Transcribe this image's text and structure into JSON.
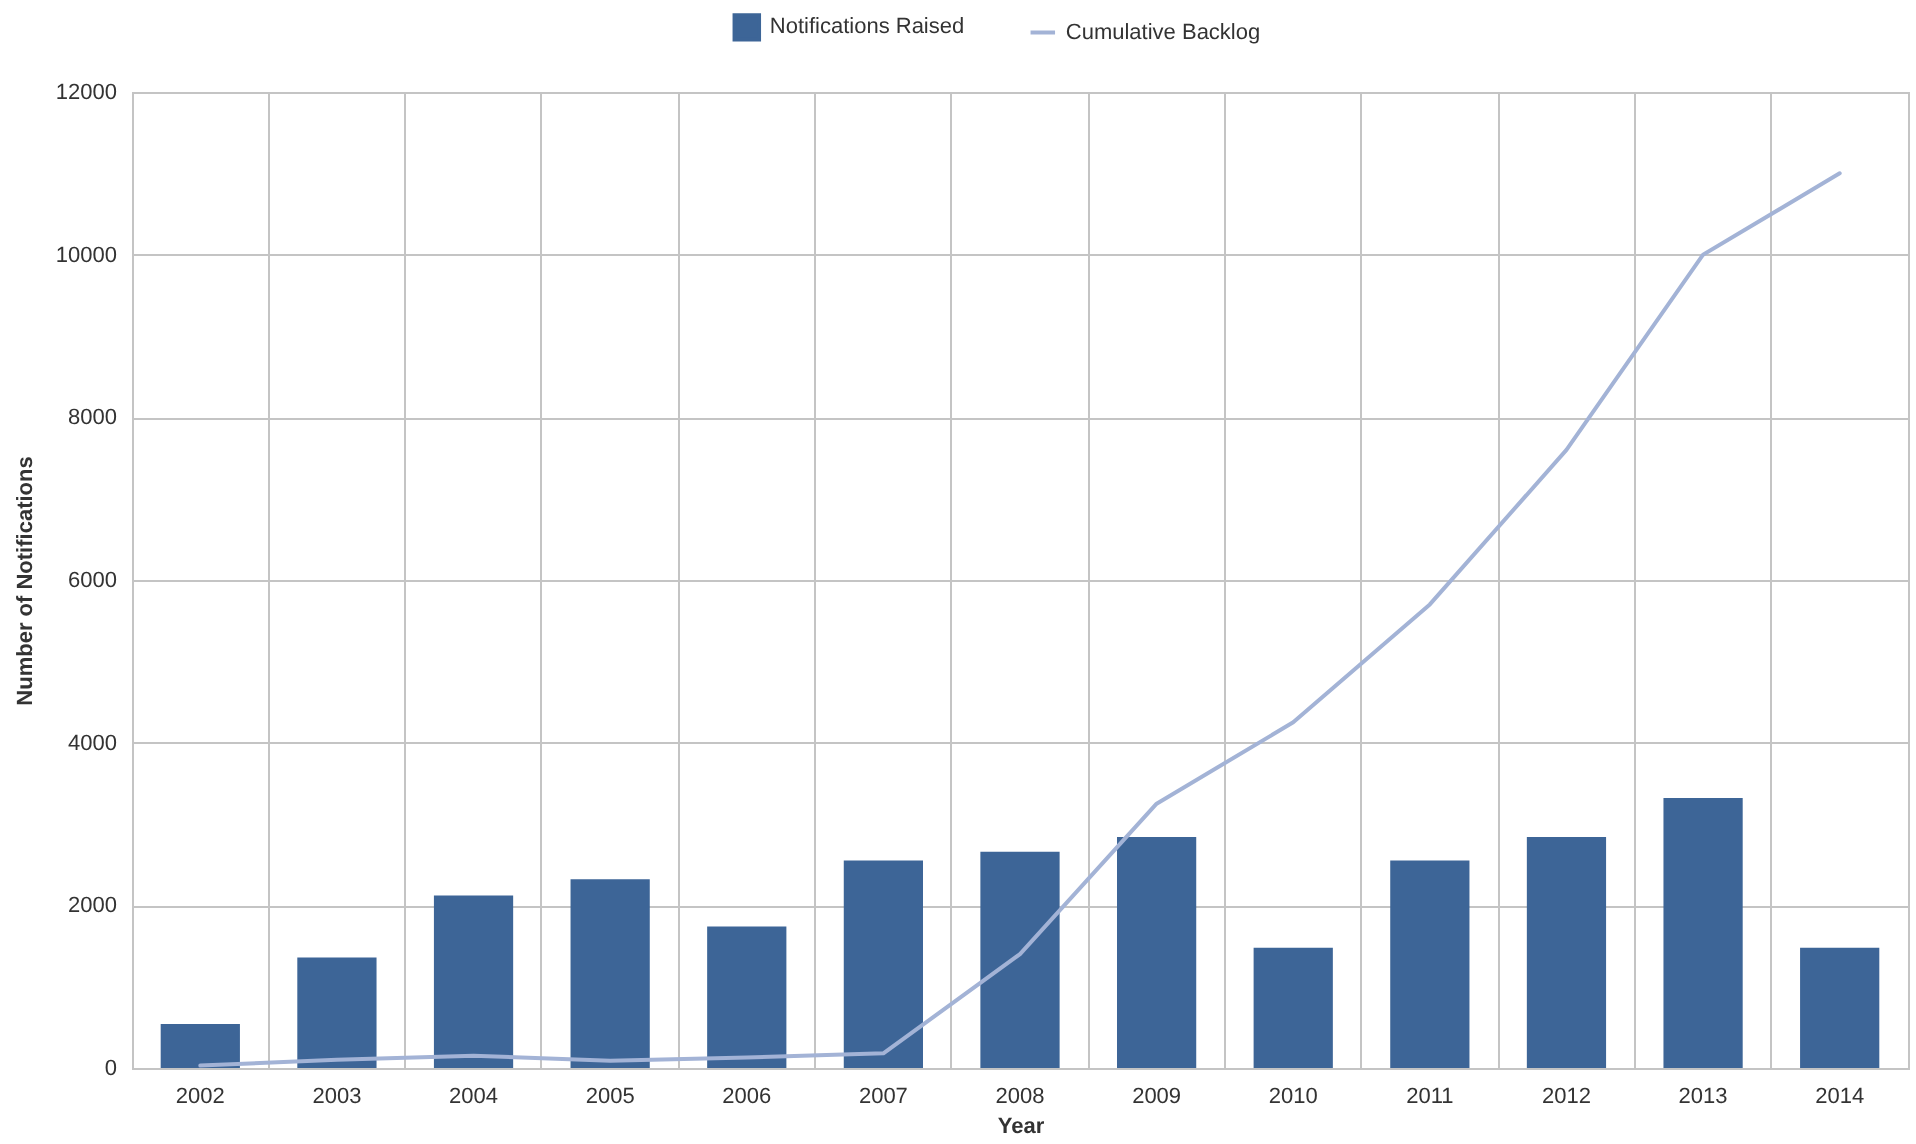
{
  "chart_data": {
    "type": "bar",
    "xlabel": "Year",
    "ylabel": "Number of Notifications",
    "categories": [
      "2002",
      "2003",
      "2004",
      "2005",
      "2006",
      "2007",
      "2008",
      "2009",
      "2010",
      "2011",
      "2012",
      "2013",
      "2014"
    ],
    "series": [
      {
        "name": "Notifications Raised",
        "color": "#3d6597",
        "values": [
          540,
          1360,
          2120,
          2320,
          1740,
          2550,
          2660,
          2840,
          1480,
          2550,
          2840,
          3320,
          1480
        ]
      },
      {
        "name": "Cumulative Backlog",
        "type": "line",
        "color": "#a3b3d6",
        "values": [
          30,
          100,
          150,
          90,
          130,
          180,
          1400,
          3250,
          4250,
          5700,
          7600,
          10000,
          11000
        ]
      }
    ],
    "ylim": [
      0,
      12000
    ],
    "yticks": [
      0,
      2000,
      4000,
      6000,
      8000,
      10000,
      12000
    ],
    "grid": true,
    "legend": "top"
  }
}
